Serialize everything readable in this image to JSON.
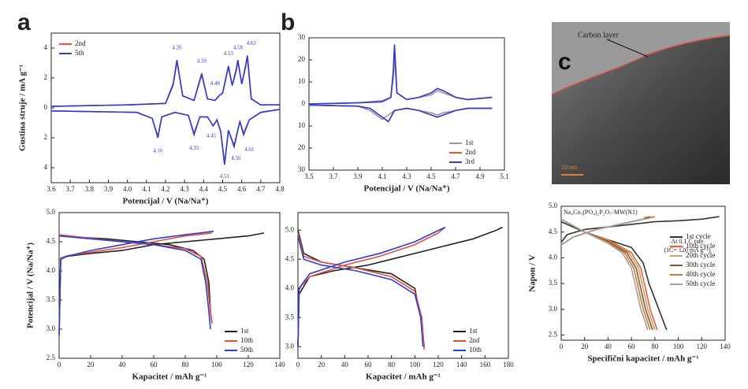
{
  "panel_labels": [
    "a",
    "b",
    "c"
  ],
  "image": {
    "annotation": "Carbon layer",
    "scale_bar": "10 nm"
  },
  "chart_data": [
    {
      "type": "line",
      "xlabel": "Potencijal / V (Na/Na⁺)",
      "ylabel": "Gustina struje / mA g⁻¹",
      "xlim": [
        3.6,
        4.8
      ],
      "ylim": [
        -5,
        5
      ],
      "xticks": [
        3.6,
        3.7,
        3.8,
        3.9,
        {
          "value": 4,
          "label": "4.0"
        },
        4.1,
        4.2,
        4.3,
        4.4,
        4.5,
        4.6,
        4.7,
        4.8
      ],
      "yticks": [
        4,
        2,
        0,
        {
          "value": -2,
          "label": "2"
        },
        {
          "value": -4,
          "label": "4"
        }
      ],
      "legend": "upper left",
      "series": [
        {
          "name": "2nd",
          "color": "#e8503a",
          "x": [
            3.6,
            4.0,
            4.2,
            4.24,
            4.26,
            4.29,
            4.35,
            4.39,
            4.42,
            4.46,
            4.48,
            4.5,
            4.53,
            4.55,
            4.57,
            4.58,
            4.6,
            4.62,
            4.63,
            4.65,
            4.7,
            4.8,
            null,
            4.8,
            4.7,
            4.64,
            4.61,
            4.59,
            4.56,
            4.53,
            4.51,
            4.49,
            4.47,
            4.45,
            4.42,
            4.38,
            4.35,
            4.32,
            4.25,
            4.18,
            4.16,
            4.13,
            4.05,
            3.6
          ],
          "values": [
            0.1,
            0.2,
            0.3,
            1.5,
            3.1,
            0.8,
            0.5,
            2.2,
            0.6,
            0.5,
            0.8,
            1,
            2.7,
            1.5,
            2.4,
            3.1,
            1.6,
            2.7,
            3.4,
            0.6,
            0.2,
            0.2,
            null,
            -0.1,
            -0.3,
            -0.8,
            -1.7,
            -0.9,
            -2.5,
            -1.5,
            -3.7,
            -1.6,
            -0.8,
            -1.2,
            -0.6,
            -0.6,
            -1.7,
            -0.5,
            -0.3,
            -0.6,
            -1.9,
            -0.7,
            -0.3,
            -0.2
          ]
        },
        {
          "name": "5th",
          "color": "#2b3fd6",
          "x": [
            3.6,
            4.0,
            4.2,
            4.24,
            4.26,
            4.29,
            4.35,
            4.39,
            4.42,
            4.46,
            4.48,
            4.5,
            4.53,
            4.55,
            4.57,
            4.58,
            4.6,
            4.62,
            4.63,
            4.65,
            4.7,
            4.8,
            null,
            4.8,
            4.7,
            4.64,
            4.61,
            4.59,
            4.56,
            4.53,
            4.51,
            4.49,
            4.47,
            4.45,
            4.42,
            4.38,
            4.35,
            4.32,
            4.25,
            4.18,
            4.16,
            4.13,
            4.05,
            3.6
          ],
          "values": [
            0.1,
            0.2,
            0.3,
            1.6,
            3.2,
            0.8,
            0.5,
            2.3,
            0.6,
            0.5,
            0.8,
            1,
            2.8,
            1.5,
            2.5,
            3.2,
            1.6,
            2.8,
            3.5,
            0.6,
            0.2,
            0.2,
            null,
            -0.1,
            -0.3,
            -0.8,
            -1.8,
            -0.9,
            -2.6,
            -1.5,
            -3.8,
            -1.6,
            -0.8,
            -1.2,
            -0.6,
            -0.6,
            -1.8,
            -0.5,
            -0.3,
            -0.6,
            -2,
            -0.7,
            -0.3,
            -0.2
          ]
        }
      ],
      "annotations": [
        {
          "text": "4.26",
          "x": 4.26,
          "y": 4
        },
        {
          "text": "4.39",
          "x": 4.39,
          "y": 3.1
        },
        {
          "text": "4.48",
          "x": 4.46,
          "y": 1.6
        },
        {
          "text": "4.53",
          "x": 4.53,
          "y": 3.6
        },
        {
          "text": "4.58",
          "x": 4.58,
          "y": 4
        },
        {
          "text": "4.63",
          "x": 4.65,
          "y": 4.3
        },
        {
          "text": "4.16",
          "x": 4.16,
          "y": -2.9
        },
        {
          "text": "4.35",
          "x": 4.35,
          "y": -2.7
        },
        {
          "text": "4.45",
          "x": 4.44,
          "y": -1.9
        },
        {
          "text": "4.51",
          "x": 4.51,
          "y": -4.6
        },
        {
          "text": "4.56",
          "x": 4.57,
          "y": -3.4
        },
        {
          "text": "4.61",
          "x": 4.64,
          "y": -2.8
        }
      ]
    },
    {
      "type": "line",
      "xlabel": "Potencijal / V (Na/Na⁺)",
      "xlim": [
        3.5,
        5.1
      ],
      "ylim": [
        -30,
        30
      ],
      "xticks": [
        3.5,
        3.7,
        3.9,
        4.1,
        4.3,
        4.5,
        4.7,
        4.9,
        5.1
      ],
      "yticks": [
        30,
        20,
        10,
        0,
        {
          "value": -10,
          "label": "10"
        },
        {
          "value": -20,
          "label": "20"
        },
        {
          "value": -30,
          "label": "30"
        }
      ],
      "legend": "lower right",
      "series": [
        {
          "name": "1st",
          "color": "#9a9a9a",
          "x": [
            3.5,
            3.9,
            4.1,
            4.17,
            4.19,
            4.2,
            4.22,
            4.3,
            4.4,
            4.5,
            4.55,
            4.6,
            4.7,
            4.8,
            5.0,
            null,
            5.0,
            4.8,
            4.7,
            4.6,
            4.55,
            4.5,
            4.4,
            4.3,
            4.2,
            4.15,
            4.1,
            4.0,
            3.9,
            3.5
          ],
          "values": [
            0,
            0.5,
            1.5,
            3,
            12,
            22,
            5,
            2,
            3,
            4,
            6,
            5,
            3,
            2,
            3,
            null,
            -2,
            -2,
            -3,
            -4,
            -5,
            -4,
            -3,
            -2,
            -3,
            -5,
            -7,
            -3,
            -1,
            -0.5
          ]
        },
        {
          "name": "2nd",
          "color": "#e8503a",
          "x": [
            3.5,
            3.9,
            4.1,
            4.17,
            4.19,
            4.2,
            4.22,
            4.3,
            4.4,
            4.5,
            4.55,
            4.6,
            4.7,
            4.8,
            5.0,
            null,
            5.0,
            4.8,
            4.7,
            4.6,
            4.55,
            4.5,
            4.4,
            4.3,
            4.2,
            4.15,
            4.1,
            4.0,
            3.9,
            3.5
          ],
          "values": [
            0,
            0.5,
            1,
            3,
            14,
            26,
            5,
            2,
            3,
            5,
            7,
            6,
            3,
            2,
            3,
            null,
            -2,
            -2,
            -3,
            -5,
            -6,
            -5,
            -3,
            -2,
            -3,
            -8,
            -6,
            -2,
            -1,
            -0.5
          ]
        },
        {
          "name": "3rd",
          "color": "#2b3fd6",
          "x": [
            3.5,
            3.9,
            4.1,
            4.17,
            4.19,
            4.2,
            4.22,
            4.3,
            4.4,
            4.5,
            4.55,
            4.6,
            4.7,
            4.8,
            5.0,
            null,
            5.0,
            4.8,
            4.7,
            4.6,
            4.55,
            4.5,
            4.4,
            4.3,
            4.2,
            4.15,
            4.1,
            4.0,
            3.9,
            3.5
          ],
          "values": [
            0,
            0.5,
            1,
            3,
            15,
            27,
            5,
            2,
            3,
            5,
            7,
            6,
            3,
            2,
            3,
            null,
            -2,
            -2,
            -3,
            -5,
            -6,
            -5,
            -3,
            -2,
            -3,
            -8,
            -6,
            -2,
            -1,
            -0.5
          ]
        }
      ]
    },
    {
      "type": "line",
      "xlabel": "Kapacitet / mAh g⁻¹",
      "ylabel": "Potencijal / V (Na/Na⁺)",
      "xlim": [
        0,
        140
      ],
      "ylim": [
        2.5,
        5
      ],
      "xticks": [
        0,
        20,
        40,
        60,
        80,
        100,
        120,
        140
      ],
      "yticks": [
        2.5,
        {
          "value": 3,
          "label": "3.0"
        },
        3.5,
        {
          "value": 4,
          "label": "4.0"
        },
        4.5,
        {
          "value": 5,
          "label": "5.0"
        }
      ],
      "legend": "lower right",
      "series": [
        {
          "name": "1st",
          "color": "#222222",
          "x": [
            0,
            1,
            5,
            20,
            40,
            60,
            80,
            100,
            120,
            130,
            null,
            0,
            10,
            30,
            50,
            70,
            85,
            92,
            95,
            96,
            97
          ],
          "values": [
            2.9,
            4.2,
            4.25,
            4.3,
            4.35,
            4.45,
            4.5,
            4.55,
            4.6,
            4.65,
            null,
            4.6,
            4.58,
            4.55,
            4.5,
            4.45,
            4.35,
            4.2,
            3.8,
            3.3,
            3.1
          ]
        },
        {
          "name": "10th",
          "color": "#e8503a",
          "x": [
            0,
            1,
            5,
            20,
            40,
            60,
            80,
            97,
            null,
            0,
            20,
            40,
            60,
            80,
            90,
            94,
            96,
            97
          ],
          "values": [
            2.9,
            4.22,
            4.26,
            4.32,
            4.4,
            4.5,
            4.6,
            4.65,
            null,
            4.62,
            4.56,
            4.5,
            4.45,
            4.38,
            4.25,
            3.8,
            3.3,
            3.1
          ]
        },
        {
          "name": "50th",
          "color": "#2b3fd6",
          "x": [
            0,
            1,
            5,
            20,
            40,
            60,
            80,
            98,
            null,
            0,
            20,
            40,
            60,
            80,
            90,
            93,
            95,
            96
          ],
          "values": [
            2.9,
            4.2,
            4.25,
            4.35,
            4.45,
            4.55,
            4.62,
            4.68,
            null,
            4.6,
            4.55,
            4.5,
            4.45,
            4.35,
            4.2,
            3.8,
            3.3,
            3.0
          ]
        }
      ]
    },
    {
      "type": "line",
      "xlabel": "Kapacitet / mAh g⁻¹",
      "xlim": [
        0,
        180
      ],
      "ylim": [
        2.8,
        5.3
      ],
      "xticks": [
        0,
        20,
        40,
        60,
        80,
        100,
        120,
        140,
        160,
        180
      ],
      "yticks": [
        {
          "value": 3,
          "label": "3.0"
        },
        3.5,
        {
          "value": 4,
          "label": "4.0"
        },
        4.5,
        {
          "value": 5,
          "label": "5.0"
        }
      ],
      "legend": "lower right",
      "series": [
        {
          "name": "1st",
          "color": "#222222",
          "x": [
            0,
            1,
            10,
            30,
            60,
            90,
            120,
            150,
            170,
            175,
            null,
            0,
            5,
            20,
            50,
            80,
            100,
            105,
            108
          ],
          "values": [
            3.0,
            3.9,
            4.2,
            4.3,
            4.4,
            4.55,
            4.7,
            4.85,
            5.0,
            5.05,
            null,
            5.0,
            4.6,
            4.45,
            4.35,
            4.25,
            4.0,
            3.5,
            3.0
          ]
        },
        {
          "name": "2nd",
          "color": "#e8503a",
          "x": [
            0,
            1,
            10,
            40,
            70,
            100,
            120,
            126,
            null,
            0,
            5,
            20,
            50,
            80,
            100,
            106,
            108
          ],
          "values": [
            3.0,
            4.0,
            4.2,
            4.4,
            4.55,
            4.75,
            4.95,
            5.05,
            null,
            4.95,
            4.55,
            4.45,
            4.35,
            4.2,
            3.95,
            3.5,
            2.95
          ]
        },
        {
          "name": "10th",
          "color": "#2b3fd6",
          "x": [
            0,
            1,
            10,
            40,
            70,
            100,
            126,
            null,
            0,
            5,
            20,
            50,
            80,
            100,
            105,
            107
          ],
          "values": [
            3.0,
            4.0,
            4.25,
            4.45,
            4.6,
            4.8,
            5.05,
            null,
            4.9,
            4.5,
            4.4,
            4.3,
            4.15,
            3.9,
            3.5,
            3.0
          ]
        }
      ]
    },
    {
      "type": "line",
      "xlabel": "Specifični kapacitet / mAh g⁻¹",
      "ylabel": "Napon / V",
      "xlim": [
        0,
        140
      ],
      "ylim": [
        2.4,
        5
      ],
      "xticks": [
        0,
        20,
        40,
        60,
        80,
        100,
        120,
        140
      ],
      "yticks": [
        2.5,
        {
          "value": 3,
          "label": "3.0"
        },
        3.5,
        {
          "value": 4,
          "label": "4.0"
        },
        4.5,
        {
          "value": 5,
          "label": "5.0"
        }
      ],
      "legend": "right",
      "notes": [
        "Na₄Co₃(PO₄)₂P₂O₇-MW(N1)",
        "At 0.1 C rate",
        "(1C= 120 mA g⁻¹)"
      ],
      "series": [
        {
          "name": "1st cycle",
          "color": "#333333",
          "x": [
            0,
            5,
            20,
            40,
            60,
            80,
            100,
            120,
            135,
            null,
            0,
            20,
            40,
            60,
            70,
            75,
            80,
            85,
            90
          ],
          "values": [
            4.3,
            4.45,
            4.55,
            4.6,
            4.65,
            4.7,
            4.72,
            4.75,
            4.8,
            null,
            4.7,
            4.5,
            4.35,
            4.2,
            3.9,
            3.5,
            3.2,
            2.9,
            2.6
          ]
        },
        {
          "name": "10th cycle",
          "color": "#e8602a",
          "x": [
            0,
            10,
            30,
            50,
            70,
            80,
            null,
            0,
            20,
            40,
            60,
            68,
            72,
            76,
            82
          ],
          "values": [
            4.25,
            4.4,
            4.55,
            4.65,
            4.75,
            4.8,
            null,
            4.75,
            4.5,
            4.35,
            4.1,
            3.8,
            3.4,
            3.0,
            2.6
          ]
        },
        {
          "name": "20th cycle",
          "color": "#c8a070",
          "x": [
            0,
            10,
            30,
            50,
            70,
            78,
            null,
            0,
            20,
            40,
            58,
            66,
            70,
            74,
            80
          ],
          "values": [
            4.25,
            4.4,
            4.55,
            4.65,
            4.75,
            4.8,
            null,
            4.75,
            4.5,
            4.33,
            4.1,
            3.8,
            3.4,
            3.0,
            2.6
          ]
        },
        {
          "name": "30th cycle",
          "color": "#7a5a3a",
          "x": [
            0,
            10,
            30,
            50,
            70,
            76,
            null,
            0,
            20,
            40,
            56,
            64,
            68,
            72,
            78
          ],
          "values": [
            4.25,
            4.4,
            4.55,
            4.65,
            4.75,
            4.8,
            null,
            4.75,
            4.5,
            4.32,
            4.1,
            3.8,
            3.4,
            3.0,
            2.6
          ]
        },
        {
          "name": "40th cycle",
          "color": "#d07a30",
          "x": [
            0,
            10,
            30,
            50,
            70,
            74,
            null,
            0,
            20,
            40,
            54,
            62,
            66,
            70,
            76
          ],
          "values": [
            4.25,
            4.4,
            4.55,
            4.65,
            4.75,
            4.8,
            null,
            4.75,
            4.5,
            4.3,
            4.1,
            3.8,
            3.4,
            3.0,
            2.6
          ]
        },
        {
          "name": "50th cycle",
          "color": "#a0a0a0",
          "x": [
            0,
            10,
            30,
            50,
            70,
            72,
            null,
            0,
            20,
            40,
            52,
            60,
            64,
            68,
            74
          ],
          "values": [
            4.25,
            4.4,
            4.55,
            4.65,
            4.75,
            4.8,
            null,
            4.75,
            4.5,
            4.28,
            4.1,
            3.8,
            3.4,
            3.0,
            2.6
          ]
        }
      ]
    }
  ]
}
